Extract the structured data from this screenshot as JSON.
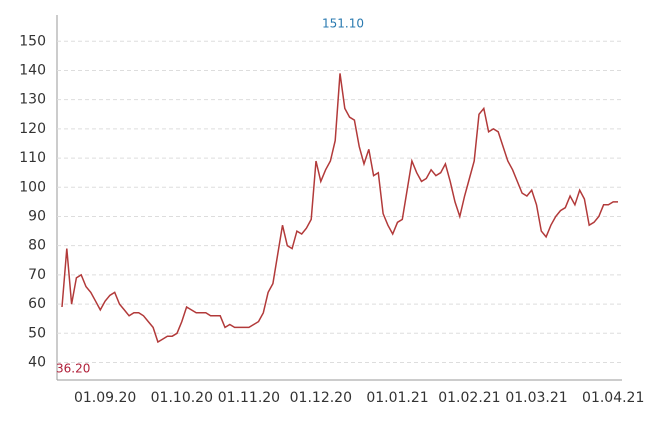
{
  "chart_data": {
    "type": "line",
    "categories": [
      null,
      null,
      null,
      null,
      null,
      null,
      null,
      null,
      null,
      "01.09.20",
      null,
      null,
      null,
      null,
      null,
      null,
      null,
      null,
      null,
      null,
      null,
      null,
      null,
      null,
      null,
      "01.10.20",
      null,
      null,
      null,
      null,
      null,
      null,
      null,
      null,
      null,
      null,
      null,
      null,
      null,
      "01.11.20",
      null,
      null,
      null,
      null,
      null,
      null,
      null,
      null,
      null,
      null,
      null,
      null,
      null,
      null,
      "01.12.20",
      null,
      null,
      null,
      null,
      null,
      null,
      null,
      null,
      null,
      null,
      null,
      null,
      null,
      null,
      null,
      "01.01.21",
      null,
      null,
      null,
      null,
      null,
      null,
      null,
      null,
      null,
      null,
      null,
      null,
      null,
      null,
      "01.02.21",
      null,
      null,
      null,
      null,
      null,
      null,
      null,
      null,
      null,
      null,
      null,
      null,
      null,
      "01.03.21",
      null,
      null,
      null,
      null,
      null,
      null,
      null,
      null,
      null,
      null,
      null,
      null,
      null,
      null,
      null,
      "01.04.21",
      null
    ],
    "series": [
      {
        "name": null,
        "color": "#b23a3a",
        "values": [
          59,
          79,
          60,
          69,
          70,
          66,
          64,
          61,
          58,
          61,
          63,
          64,
          60,
          58,
          56,
          57,
          57,
          56,
          54,
          52,
          47,
          48,
          49,
          49,
          50,
          54,
          59,
          58,
          57,
          57,
          57,
          56,
          56,
          56,
          52,
          53,
          52,
          52,
          52,
          52,
          53,
          54,
          57,
          64,
          67,
          77,
          87,
          80,
          79,
          85,
          84,
          86,
          89,
          109,
          102,
          106,
          109,
          116,
          139,
          127,
          124,
          123,
          114,
          108,
          113,
          104,
          105,
          91,
          87,
          84,
          88,
          89,
          99,
          109,
          105,
          102,
          103,
          106,
          104,
          105,
          108,
          102,
          95,
          90,
          97,
          103,
          109,
          125,
          127,
          119,
          120,
          119,
          114,
          109,
          106,
          102,
          98,
          97,
          99,
          94,
          85,
          83,
          87,
          90,
          92,
          93,
          97,
          94,
          99,
          96,
          87,
          88,
          90,
          94,
          94,
          95,
          95
        ]
      }
    ],
    "ylim": [
      34,
      159
    ],
    "yticks": [
      40,
      50,
      60,
      70,
      80,
      90,
      100,
      110,
      120,
      130,
      140,
      150
    ],
    "grid": true,
    "annotations": [
      "151.10",
      "36.20"
    ]
  }
}
